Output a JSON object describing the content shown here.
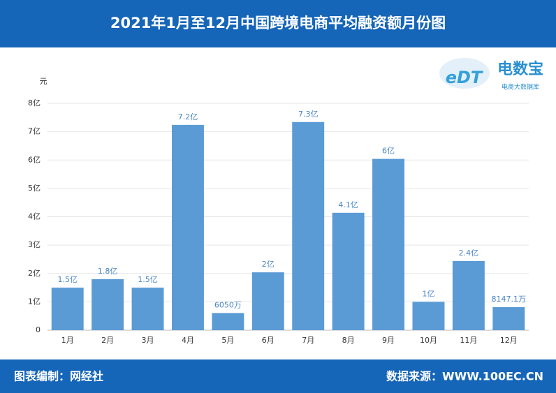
{
  "chart_data": {
    "type": "bar",
    "title": "2021年1月至12月中国跨境电商平均融资额月份图",
    "y_label": "元",
    "categories": [
      "1月",
      "2月",
      "3月",
      "4月",
      "5月",
      "6月",
      "7月",
      "8月",
      "9月",
      "10月",
      "11月",
      "12月"
    ],
    "values": [
      150000000,
      180000000,
      150000000,
      724000000,
      60500000,
      204000000,
      734000000,
      414000000,
      604000000,
      100000000,
      244000000,
      81471000
    ],
    "value_labels": [
      "1.5亿",
      "1.8亿",
      "1.5亿",
      "7.2亿",
      "6050万",
      "2亿",
      "7.3亿",
      "4.1亿",
      "6亿",
      "1亿",
      "2.4亿",
      "8147.1万"
    ],
    "color": "#5b9bd5",
    "ylim": [
      0,
      800000000
    ],
    "yticks": [
      0,
      {
        "value": 100000000,
        "label": "1亿"
      },
      {
        "value": 200000000,
        "label": "2亿"
      },
      {
        "value": 300000000,
        "label": "3亿"
      },
      {
        "value": 400000000,
        "label": "4亿"
      },
      {
        "value": 500000000,
        "label": "5亿"
      },
      {
        "value": 600000000,
        "label": "6亿"
      },
      {
        "value": 700000000,
        "label": "7亿"
      },
      {
        "value": 800000000,
        "label": "8亿"
      }
    ],
    "grid": true
  },
  "logo": {
    "mark": "eDT",
    "name": "电数宝",
    "tagline": "电商大数据库"
  },
  "footer": {
    "left": "图表编制：网经社",
    "right": "数据来源：WWW.100EC.CN"
  }
}
